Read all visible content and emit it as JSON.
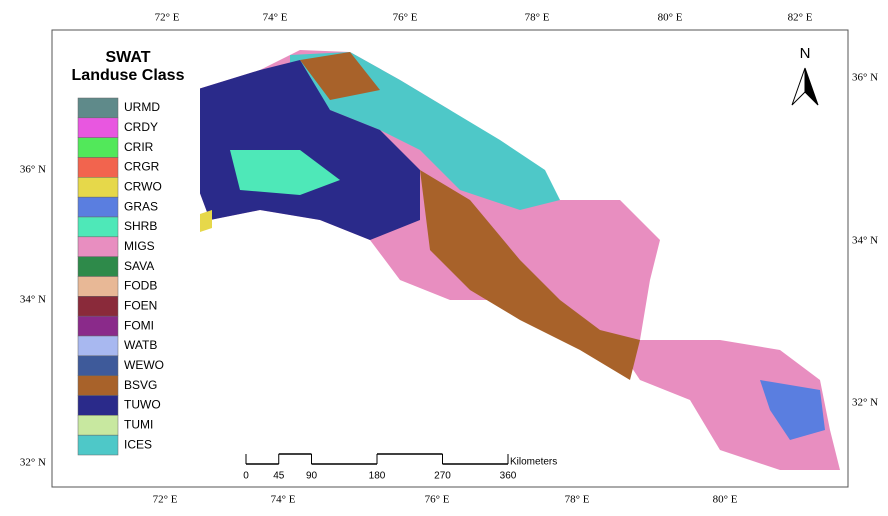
{
  "title": [
    "SWAT",
    "Landuse Class"
  ],
  "legend": [
    {
      "label": "URMD",
      "color": "#5f8a8a"
    },
    {
      "label": "CRDY",
      "color": "#e857e0"
    },
    {
      "label": "CRIR",
      "color": "#52e85a"
    },
    {
      "label": "CRGR",
      "color": "#f2644e"
    },
    {
      "label": "CRWO",
      "color": "#e6d84a"
    },
    {
      "label": "GRAS",
      "color": "#5a7ee0"
    },
    {
      "label": "SHRB",
      "color": "#4ee8b8"
    },
    {
      "label": "MIGS",
      "color": "#e88ec0"
    },
    {
      "label": "SAVA",
      "color": "#2e8a4a"
    },
    {
      "label": "FODB",
      "color": "#e8b896"
    },
    {
      "label": "FOEN",
      "color": "#8a2a3a"
    },
    {
      "label": "FOMI",
      "color": "#8a2a8a"
    },
    {
      "label": "WATB",
      "color": "#a8b8f0"
    },
    {
      "label": "WEWO",
      "color": "#3e5a9a"
    },
    {
      "label": "BSVG",
      "color": "#a8622a"
    },
    {
      "label": "TUWO",
      "color": "#2a2a8a"
    },
    {
      "label": "TUMI",
      "color": "#c8e8a0"
    },
    {
      "label": "ICES",
      "color": "#4ec8c8"
    }
  ],
  "top_labels": [
    "72° E",
    "74° E",
    "76° E",
    "78° E",
    "80° E",
    "82° E"
  ],
  "bottom_labels": [
    "72° E",
    "74° E",
    "76° E",
    "78° E",
    "80° E"
  ],
  "left_labels": [
    "36° N",
    "34° N",
    "32° N"
  ],
  "right_labels": [
    "36° N",
    "34° N",
    "32° N"
  ],
  "north": "N",
  "scale": {
    "ticks": [
      0,
      45,
      90,
      180,
      270,
      360
    ],
    "unit": "Kilometers"
  }
}
